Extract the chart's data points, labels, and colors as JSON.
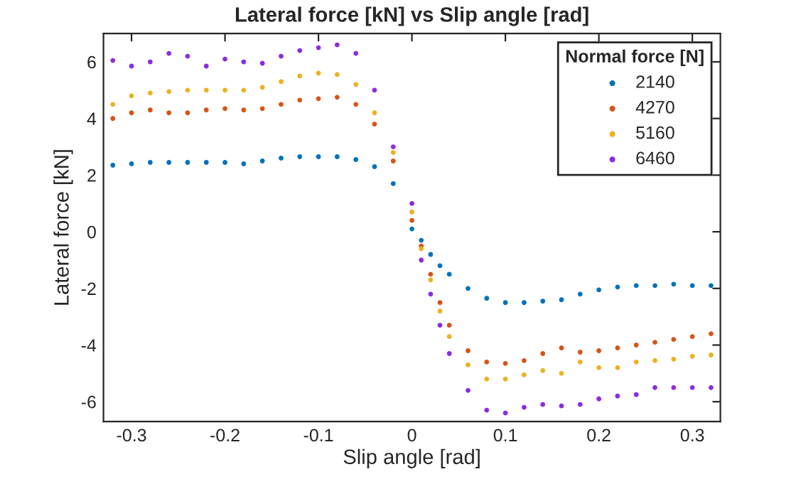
{
  "chart_data": {
    "type": "scatter",
    "title": "Lateral force [kN] vs Slip angle [rad]",
    "xlabel": "Slip angle [rad]",
    "ylabel": "Lateral force [kN]",
    "legend_title": "Normal force [N]",
    "legend": "top right",
    "marker": "circle",
    "grid": false,
    "xlim": [
      -0.33,
      0.33
    ],
    "ylim": [
      -6.7,
      7
    ],
    "xticks": [
      -0.3,
      -0.2,
      -0.1,
      0,
      0.1,
      0.2,
      0.3
    ],
    "yticks": [
      -6,
      -4,
      -2,
      0,
      2,
      4,
      6
    ],
    "x": [
      -0.32,
      -0.3,
      -0.28,
      -0.26,
      -0.24,
      -0.22,
      -0.2,
      -0.18,
      -0.16,
      -0.14,
      -0.12,
      -0.1,
      -0.08,
      -0.06,
      -0.04,
      -0.02,
      0,
      0.01,
      0.02,
      0.03,
      0.04,
      0.06,
      0.08,
      0.1,
      0.12,
      0.14,
      0.16,
      0.18,
      0.2,
      0.22,
      0.24,
      0.26,
      0.28,
      0.3,
      0.32
    ],
    "series": [
      {
        "name": "2140",
        "color": "#0072bd",
        "values": [
          2.35,
          2.4,
          2.45,
          2.45,
          2.45,
          2.45,
          2.45,
          2.4,
          2.5,
          2.6,
          2.65,
          2.65,
          2.65,
          2.55,
          2.3,
          1.7,
          0.1,
          -0.3,
          -0.8,
          -1.2,
          -1.5,
          -2.0,
          -2.35,
          -2.5,
          -2.5,
          -2.45,
          -2.4,
          -2.2,
          -2.05,
          -1.95,
          -1.9,
          -1.9,
          -1.85,
          -1.9,
          -1.9
        ]
      },
      {
        "name": "4270",
        "color": "#d95319",
        "values": [
          4.0,
          4.2,
          4.3,
          4.2,
          4.2,
          4.3,
          4.35,
          4.3,
          4.35,
          4.5,
          4.65,
          4.7,
          4.75,
          4.5,
          3.8,
          2.5,
          0.4,
          -0.5,
          -1.5,
          -2.5,
          -3.3,
          -4.2,
          -4.6,
          -4.65,
          -4.55,
          -4.3,
          -4.1,
          -4.25,
          -4.2,
          -4.1,
          -4.0,
          -3.9,
          -3.8,
          -3.7,
          -3.6
        ]
      },
      {
        "name": "5160",
        "color": "#edb120",
        "values": [
          4.5,
          4.8,
          4.9,
          4.95,
          5.0,
          5.0,
          5.0,
          5.0,
          5.1,
          5.3,
          5.5,
          5.6,
          5.55,
          5.2,
          4.2,
          2.8,
          0.7,
          -0.6,
          -1.7,
          -2.8,
          -3.7,
          -4.7,
          -5.2,
          -5.2,
          -5.05,
          -4.9,
          -5.0,
          -4.6,
          -4.8,
          -4.8,
          -4.6,
          -4.55,
          -4.5,
          -4.4,
          -4.35
        ]
      },
      {
        "name": "6460",
        "color": "#8b2be2",
        "values": [
          6.05,
          5.85,
          6.0,
          6.3,
          6.2,
          5.85,
          6.1,
          6.0,
          5.95,
          6.2,
          6.4,
          6.5,
          6.6,
          6.3,
          5.0,
          3.0,
          1.0,
          -1.0,
          -2.2,
          -3.3,
          -4.3,
          -5.6,
          -6.3,
          -6.4,
          -6.2,
          -6.1,
          -6.15,
          -6.1,
          -5.9,
          -5.8,
          -5.75,
          -5.5,
          -5.5,
          -5.5,
          -5.5
        ]
      }
    ]
  }
}
